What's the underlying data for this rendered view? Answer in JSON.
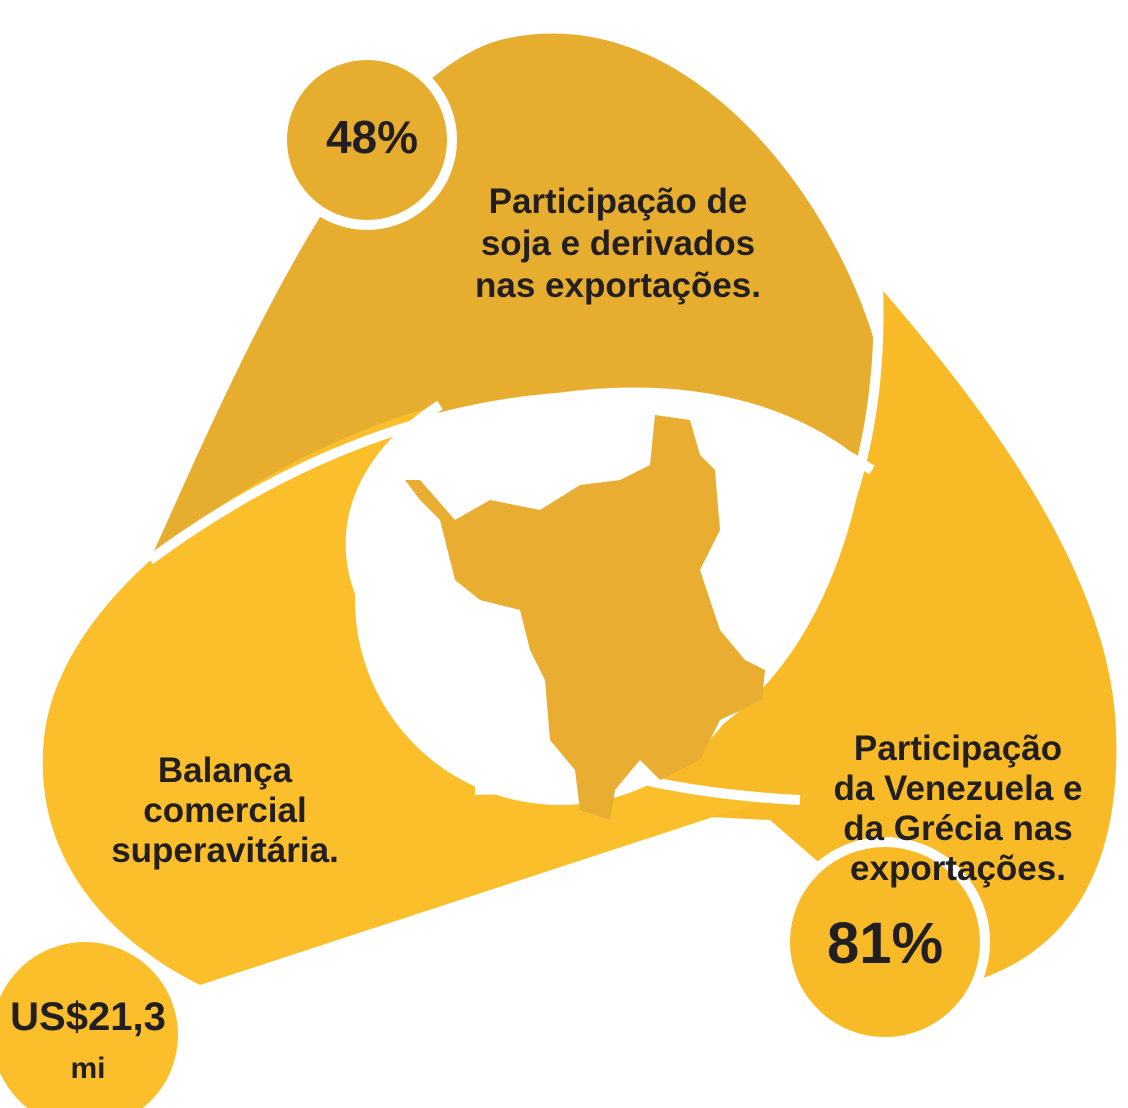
{
  "segments": [
    {
      "stat": [
        "48%"
      ],
      "text": [
        "Participação de",
        "soja e derivados",
        "nas exportações."
      ]
    },
    {
      "stat": [
        "81%"
      ],
      "text": [
        "Participação",
        "da Venezuela e",
        "da Grécia nas",
        "exportações."
      ]
    },
    {
      "stat": [
        "US$21,3",
        "mi"
      ],
      "text": [
        "Balança",
        "comercial",
        "superavitária."
      ]
    }
  ]
}
